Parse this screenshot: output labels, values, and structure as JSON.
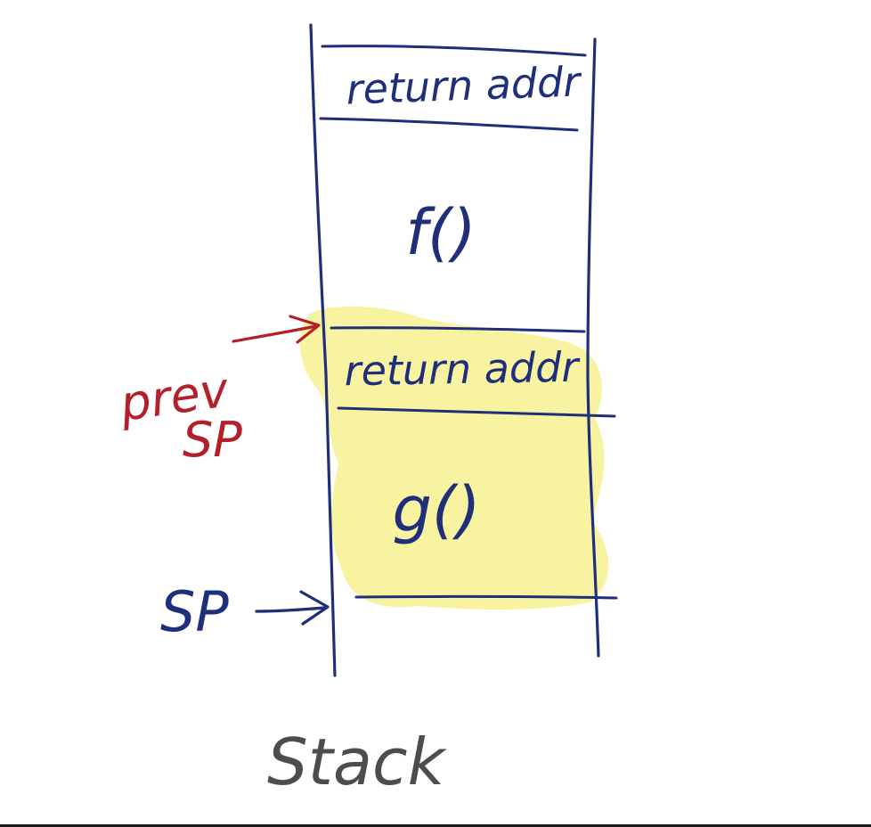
{
  "colors": {
    "ink_blue": "#1f2f7a",
    "ink_red": "#b3202a",
    "ink_gray": "#4d4d4d",
    "highlight": "#f8f3a0",
    "background": "#ffffff"
  },
  "stack": {
    "slots": [
      {
        "label": "return addr"
      },
      {
        "label": "f()"
      },
      {
        "label": "return addr"
      },
      {
        "label": "g()"
      }
    ],
    "highlighted_slots": [
      "return addr",
      "g()"
    ]
  },
  "pointers": {
    "prev_sp": {
      "line1": "prev",
      "line2": "SP"
    },
    "sp": {
      "label": "SP"
    }
  },
  "caption": "Stack",
  "icons": {
    "prev_sp_arrow": "arrow-right-icon",
    "sp_arrow": "arrow-right-icon"
  }
}
